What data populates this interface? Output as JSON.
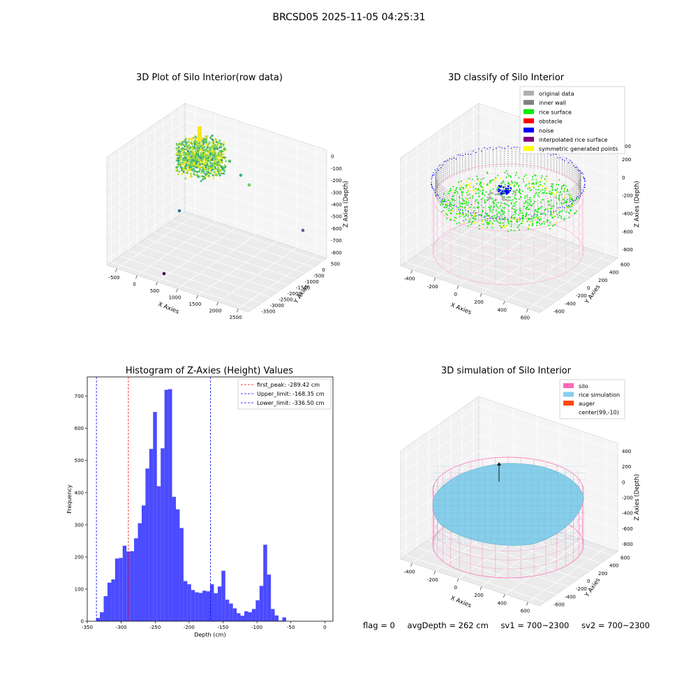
{
  "figure_title": "BRCSD05 2025-11-05 04:25:31",
  "status": {
    "flag": "flag = 0",
    "avg_depth": "avgDepth = 262 cm",
    "sv1": "sv1 = 700~2300",
    "sv2": "sv2 = 700~2300"
  },
  "colors": {
    "original": "#b0b0b0",
    "inner_wall": "#808080",
    "rice_surface": "#00ee00",
    "obstacle": "#ff0000",
    "noise": "#0000ff",
    "interpolated": "#800080",
    "symmetric": "#ffff00",
    "silo": "#ff69b4",
    "rice_sim": "#87ceeb",
    "auger": "#ff4500",
    "hist_bar": "#4b4bff"
  },
  "chart_data": [
    {
      "type": "scatter",
      "title": "3D Plot of Silo Interior(row data)",
      "xlabel": "X Axies",
      "ylabel": "Y Axies",
      "zlabel": "Z Axies (Depth)",
      "x_ticks": [
        "-500",
        "0",
        "500",
        "1000",
        "1500",
        "2000",
        "2500"
      ],
      "y_ticks": [
        "500",
        "0",
        "-500",
        "-1000",
        "-1500",
        "-2000",
        "-2500",
        "-3000",
        "-3500"
      ],
      "z_ticks": [
        "0",
        "-100",
        "-200",
        "-300",
        "-400",
        "-500",
        "-600",
        "-700",
        "-800"
      ],
      "colormap": "viridis"
    },
    {
      "type": "scatter",
      "title": "3D classify of Silo Interior",
      "xlabel": "X Axies",
      "ylabel": "Y Axies",
      "zlabel": "Z Axies (Depth)",
      "x_ticks": [
        "-400",
        "-200",
        "0",
        "200",
        "400",
        "600"
      ],
      "y_ticks": [
        "600",
        "400",
        "200",
        "0",
        "-200",
        "-400",
        "-600"
      ],
      "z_ticks": [
        "200",
        "0",
        "-200",
        "-400",
        "-600",
        "-800"
      ],
      "z_top_tick": "00",
      "legend": [
        {
          "label": "original data",
          "color": "#b0b0b0"
        },
        {
          "label": "inner wall",
          "color": "#808080"
        },
        {
          "label": "rice surface",
          "color": "#00ee00"
        },
        {
          "label": "obstacle",
          "color": "#ff0000"
        },
        {
          "label": "noise",
          "color": "#0000ff"
        },
        {
          "label": "interpolated rice surface",
          "color": "#800080"
        },
        {
          "label": "symmetric generated points",
          "color": "#ffff00"
        }
      ]
    },
    {
      "type": "bar",
      "title": "Histogram of Z-Axies (Height) Values",
      "xlabel": "Depth (cm)",
      "ylabel": "Frequency",
      "xlim": [
        -350,
        12
      ],
      "ylim": [
        0,
        760
      ],
      "x_ticks": [
        -350,
        -300,
        -250,
        -200,
        -150,
        -100,
        -50,
        0
      ],
      "y_ticks": [
        0,
        100,
        200,
        300,
        400,
        500,
        600,
        700
      ],
      "bin_start": -337,
      "bin_width": 5.6,
      "values": [
        10,
        28,
        78,
        120,
        130,
        195,
        197,
        235,
        217,
        218,
        258,
        305,
        360,
        475,
        536,
        651,
        420,
        538,
        720,
        722,
        387,
        348,
        290,
        125,
        115,
        97,
        90,
        88,
        95,
        93,
        115,
        87,
        108,
        157,
        67,
        55,
        40,
        25,
        17,
        31,
        28,
        38,
        65,
        110,
        238,
        145,
        38,
        18,
        2,
        12
      ],
      "vlines": [
        {
          "label": "first_peak: -289.42 cm",
          "x": -289.42,
          "color": "#ff0000"
        },
        {
          "label": "Upper_limit: -168.35 cm",
          "x": -168.35,
          "color": "#0000ff"
        },
        {
          "label": "Lower_limit: -336.50 cm",
          "x": -336.5,
          "color": "#0000ff"
        }
      ]
    },
    {
      "type": "scatter",
      "title": "3D simulation of Silo Interior",
      "xlabel": "X Axies",
      "ylabel": "Y Axies",
      "zlabel": "Z Axies (Depth)",
      "x_ticks": [
        "-400",
        "-200",
        "0",
        "200",
        "400",
        "600"
      ],
      "y_ticks": [
        "600",
        "400",
        "200",
        "0",
        "-200",
        "-400",
        "-600"
      ],
      "z_ticks": [
        "400",
        "200",
        "0",
        "-200",
        "-400",
        "-600",
        "-800"
      ],
      "legend": [
        {
          "label": "silo",
          "color": "#ff69b4"
        },
        {
          "label": "rice simulation",
          "color": "#87ceeb"
        },
        {
          "label": "auger",
          "color": "#ff4500"
        },
        {
          "label": "center(99,-10)",
          "color": "none"
        }
      ]
    }
  ]
}
